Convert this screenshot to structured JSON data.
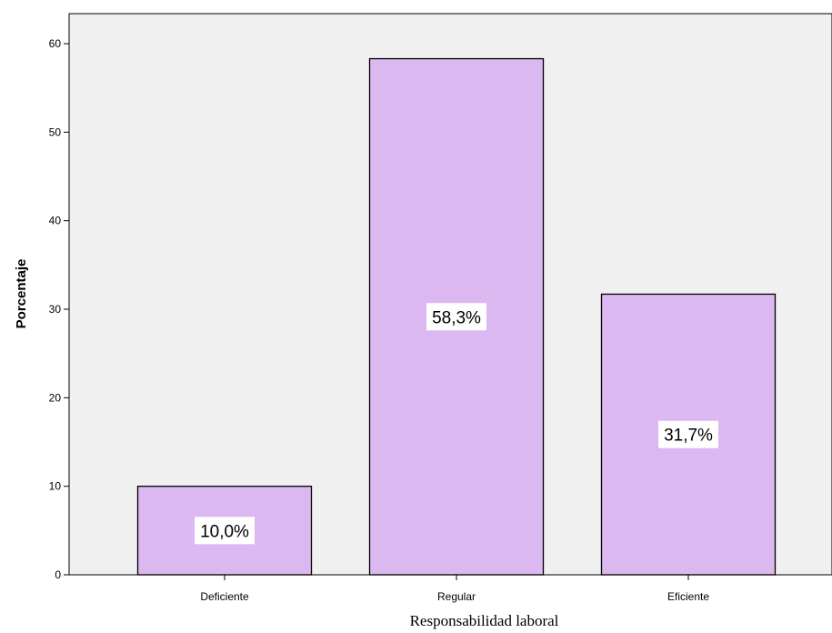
{
  "chart_data": {
    "type": "bar",
    "categories": [
      "Deficiente",
      "Regular",
      "Eficiente"
    ],
    "values": [
      10.0,
      58.3,
      31.7
    ],
    "data_labels": [
      "10,0%",
      "58,3%",
      "31,7%"
    ],
    "xlabel": "Responsabilidad laboral",
    "ylabel": "Porcentaje",
    "ylim": [
      0,
      60
    ],
    "yticks": [
      0,
      10,
      20,
      30,
      40,
      50,
      60
    ],
    "grid": false,
    "colors": {
      "bar": "#dcb8f0",
      "bar_border": "#000000",
      "plot_background": "#f0f0f0"
    }
  }
}
